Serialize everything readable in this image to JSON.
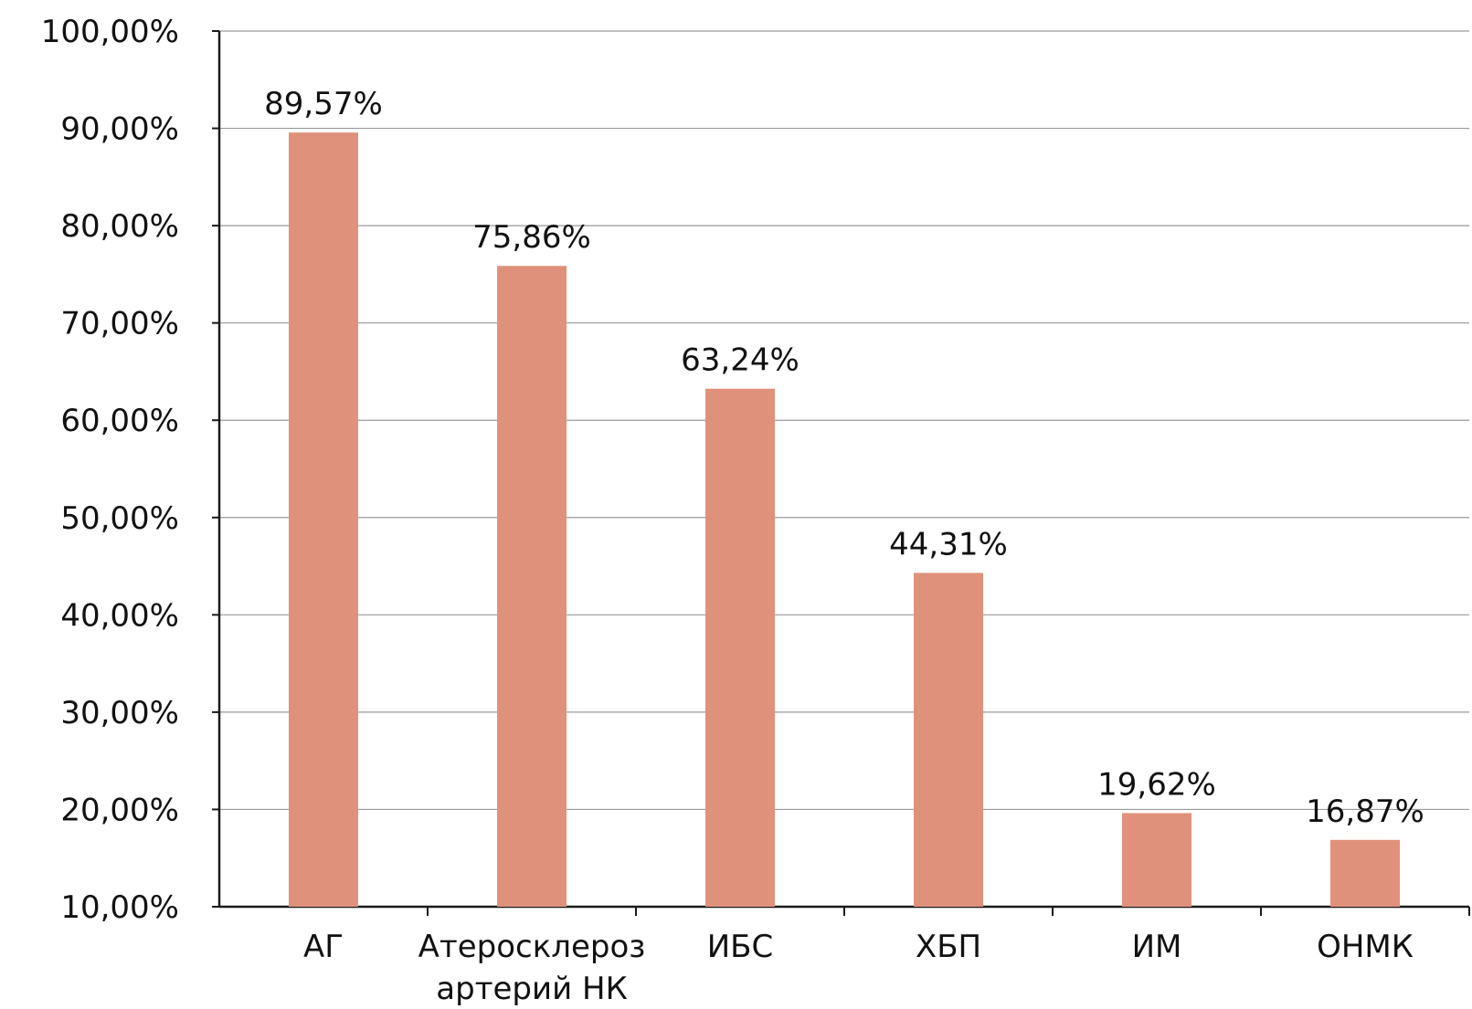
{
  "chart_data": {
    "type": "bar",
    "categories": [
      [
        "АГ"
      ],
      [
        "Атеросклероз",
        "артерий НК"
      ],
      [
        "ИБС"
      ],
      [
        "ХБП"
      ],
      [
        "ИМ"
      ],
      [
        "ОНМК"
      ]
    ],
    "values": [
      89.57,
      75.86,
      63.24,
      44.31,
      19.62,
      16.87
    ],
    "data_labels": [
      "89,57%",
      "75,86%",
      "63,24%",
      "44,31%",
      "19,62%",
      "16,87%"
    ],
    "y_ticks": [
      "10,00%",
      "20,00%",
      "30,00%",
      "40,00%",
      "50,00%",
      "60,00%",
      "70,00%",
      "80,00%",
      "90,00%",
      "100,00%"
    ],
    "title": "",
    "xlabel": "",
    "ylabel": "",
    "grid": true,
    "legend": "none",
    "colors": {
      "bar": "#e0917b",
      "grid": "#9a9a9a",
      "axis": "#1a1a1a",
      "text": "#111111"
    }
  }
}
